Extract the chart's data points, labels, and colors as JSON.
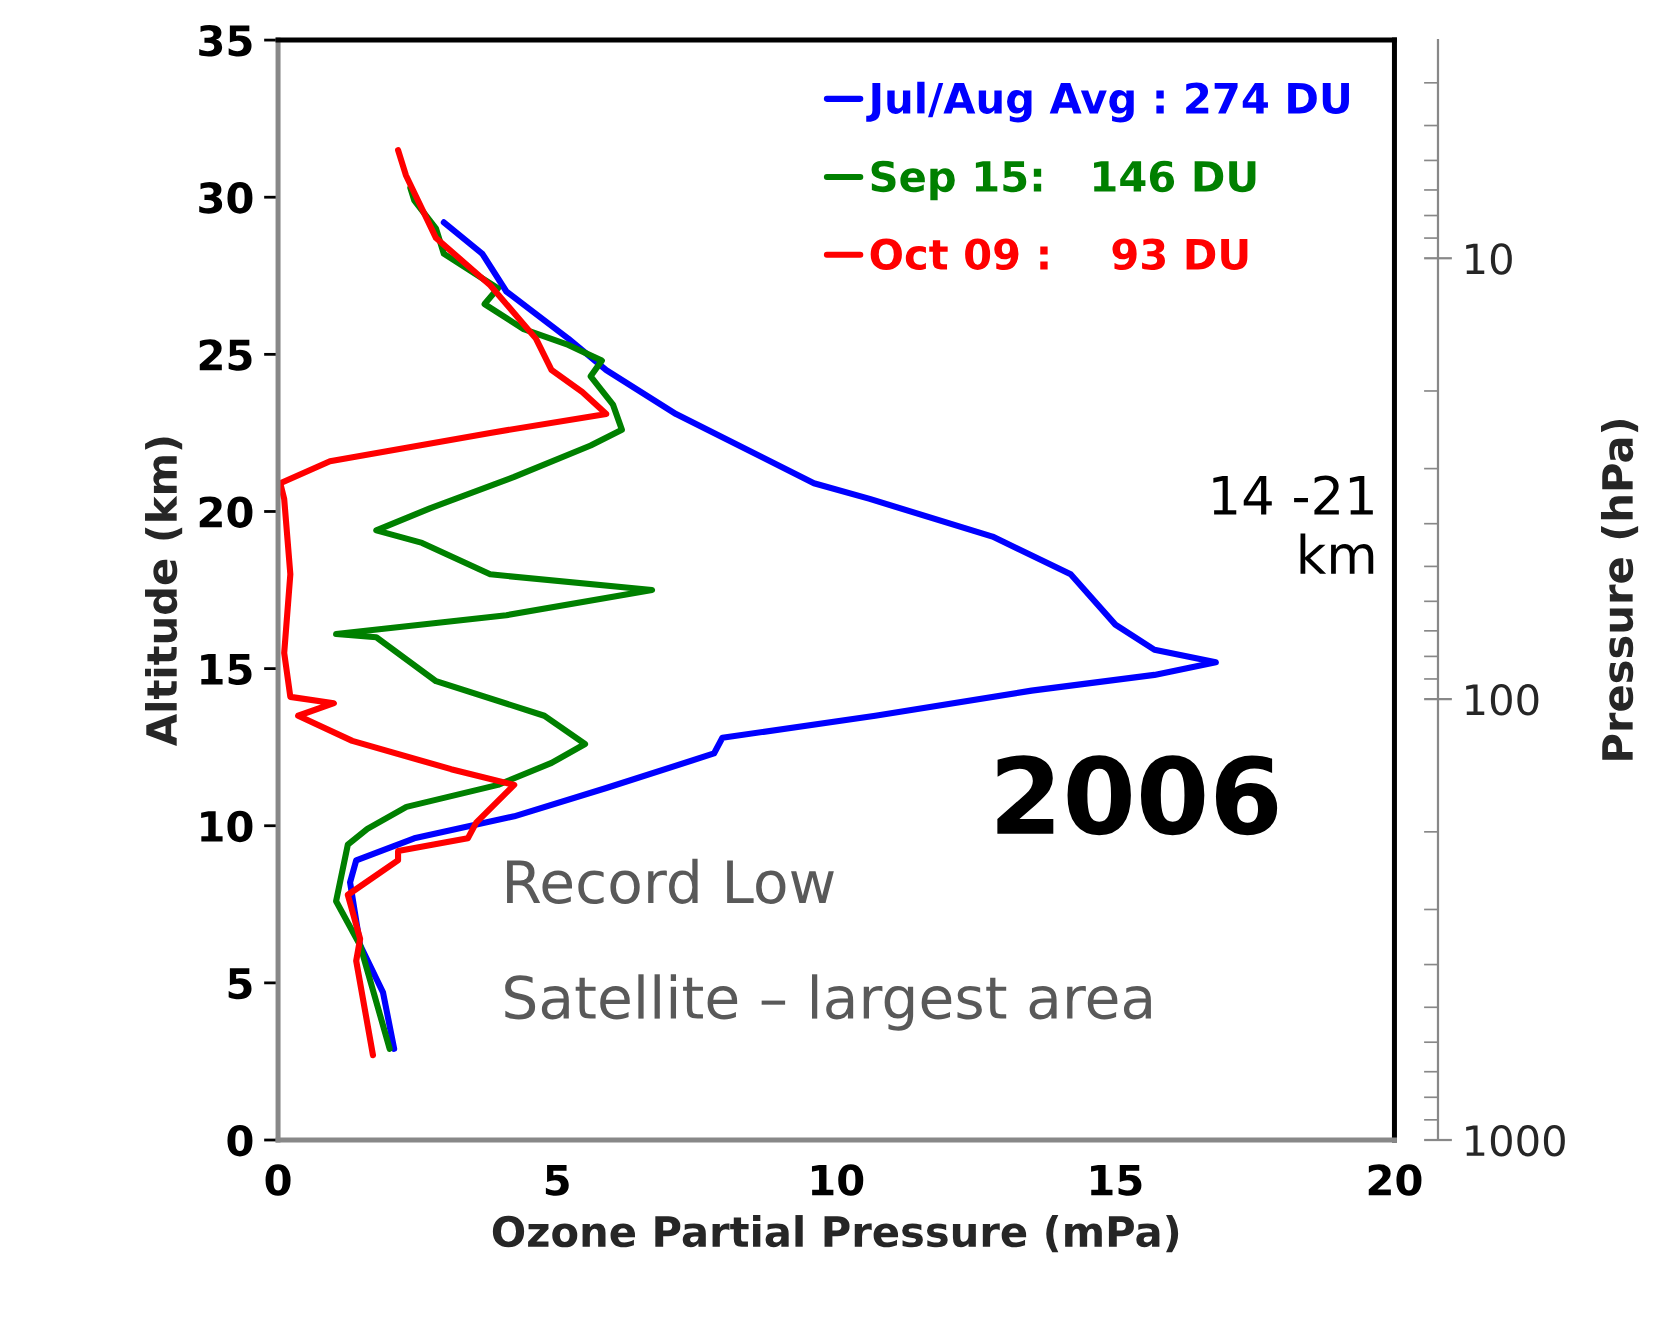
{
  "chart_data": {
    "type": "line",
    "xlabel": "Ozone Partial Pressure (mPa)",
    "ylabel": "Altitude (km)",
    "y2label": "Pressure (hPa)",
    "xlim": [
      0,
      20
    ],
    "xticks": [
      0,
      5,
      10,
      15,
      20
    ],
    "ylim": [
      0,
      35
    ],
    "yticks": [
      0,
      5,
      10,
      15,
      20,
      25,
      30,
      35
    ],
    "y2lim": [
      1000,
      3.2
    ],
    "y2ticks": [
      10,
      100,
      1000
    ],
    "log": "y2",
    "legend": "top right",
    "grid": false,
    "series": [
      {
        "name": "Jul/Aug Avg : 274 DU",
        "color": "#0000ff",
        "x": [
          2.08,
          1.88,
          1.47,
          1.29,
          1.4,
          2.44,
          4.23,
          5.88,
          7.81,
          7.96,
          10.7,
          13.5,
          15.7,
          16.8,
          15.7,
          15.0,
          14.2,
          12.8,
          10.6,
          9.6,
          7.13,
          5.88,
          5.2,
          4.09,
          3.66,
          2.97
        ],
        "values": [
          2.9,
          4.7,
          6.2,
          8.2,
          8.9,
          9.6,
          10.3,
          11.2,
          12.3,
          12.8,
          13.5,
          14.3,
          14.8,
          15.2,
          15.6,
          16.4,
          18.0,
          19.2,
          20.4,
          20.9,
          23.1,
          24.5,
          25.5,
          27.0,
          28.2,
          29.2
        ]
      },
      {
        "name": "Sep 15:   146 DU",
        "color": "#008000",
        "x": [
          2.0,
          1.47,
          1.04,
          1.25,
          1.6,
          2.3,
          3.94,
          4.9,
          5.5,
          4.77,
          2.83,
          1.76,
          1.04,
          4.09,
          6.7,
          3.8,
          2.58,
          1.76,
          2.72,
          4.23,
          5.6,
          6.16,
          6.0,
          5.6,
          5.8,
          5.2,
          4.4,
          3.7,
          3.94,
          2.97,
          2.83,
          2.44,
          2.37
        ],
        "values": [
          2.9,
          6.2,
          7.6,
          9.4,
          9.9,
          10.6,
          11.3,
          12.0,
          12.6,
          13.5,
          14.6,
          16.0,
          16.1,
          16.7,
          17.5,
          18.0,
          19.0,
          19.4,
          20.1,
          21.1,
          22.1,
          22.6,
          23.4,
          24.3,
          24.8,
          25.3,
          25.8,
          26.6,
          27.1,
          28.2,
          29.0,
          29.9,
          30.3
        ]
      },
      {
        "name": "Oct 09 :    93 DU",
        "color": "#ff0000",
        "x": [
          1.7,
          1.4,
          1.47,
          1.25,
          2.15,
          2.15,
          3.4,
          3.55,
          4.23,
          3.1,
          1.33,
          0.36,
          1.0,
          0.22,
          0.11,
          0.22,
          0.11,
          0.04,
          0.93,
          3.8,
          5.88,
          5.45,
          4.9,
          4.62,
          3.8,
          2.83,
          2.29,
          2.15
        ],
        "values": [
          2.7,
          5.7,
          6.4,
          7.8,
          8.9,
          9.2,
          9.6,
          10.1,
          11.3,
          11.8,
          12.7,
          13.5,
          13.9,
          14.1,
          15.5,
          18.0,
          20.4,
          20.9,
          21.6,
          22.5,
          23.1,
          23.8,
          24.5,
          25.5,
          27.2,
          28.7,
          30.7,
          31.5
        ]
      }
    ],
    "annotations": [
      "14 -21\nkm",
      "2006",
      "Record Low",
      "Satellite – largest area"
    ]
  }
}
